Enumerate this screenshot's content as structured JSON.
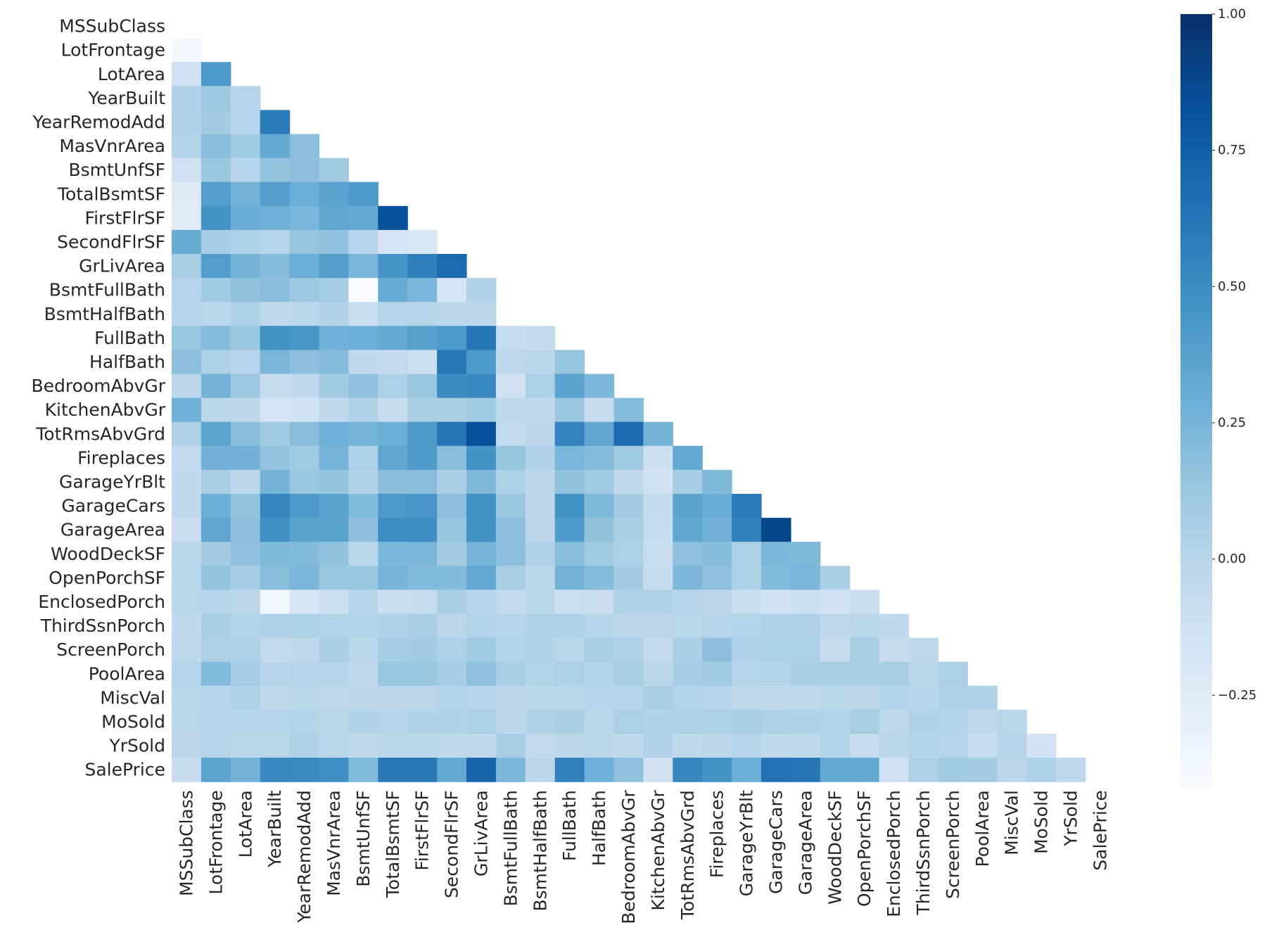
{
  "chart_data": {
    "type": "heatmap",
    "title": "",
    "xlabel": "",
    "ylabel": "",
    "mask": "upper-triangle-including-diagonal",
    "colormap": "Blues",
    "color_range": [
      -0.42,
      1.0
    ],
    "variables": [
      "MSSubClass",
      "LotFrontage",
      "LotArea",
      "YearBuilt",
      "YearRemodAdd",
      "MasVnrArea",
      "BsmtUnfSF",
      "TotalBsmtSF",
      "FirstFlrSF",
      "SecondFlrSF",
      "GrLivArea",
      "BsmtFullBath",
      "BsmtHalfBath",
      "FullBath",
      "HalfBath",
      "BedroomAbvGr",
      "KitchenAbvGr",
      "TotRmsAbvGrd",
      "Fireplaces",
      "GarageYrBlt",
      "GarageCars",
      "GarageArea",
      "WoodDeckSF",
      "OpenPorchSF",
      "EnclosedPorch",
      "ThirdSsnPorch",
      "ScreenPorch",
      "PoolArea",
      "MiscVal",
      "MoSold",
      "YrSold",
      "SalePrice"
    ],
    "rows": [
      [],
      [
        -0.39
      ],
      [
        -0.14,
        0.43
      ],
      [
        0.03,
        0.12,
        0.01
      ],
      [
        0.04,
        0.09,
        0.01,
        0.59
      ],
      [
        0.02,
        0.19,
        0.1,
        0.32,
        0.18
      ],
      [
        -0.14,
        0.13,
        -0.0,
        0.15,
        0.18,
        0.11
      ],
      [
        -0.24,
        0.39,
        0.26,
        0.39,
        0.29,
        0.36,
        0.42
      ],
      [
        -0.25,
        0.46,
        0.3,
        0.28,
        0.24,
        0.34,
        0.32,
        0.82
      ],
      [
        0.31,
        0.08,
        0.05,
        0.01,
        0.14,
        0.17,
        -0.0,
        -0.17,
        -0.2
      ],
      [
        0.07,
        0.4,
        0.26,
        0.2,
        0.29,
        0.39,
        0.24,
        0.45,
        0.57,
        0.69
      ],
      [
        0.0,
        0.1,
        0.16,
        0.19,
        0.12,
        0.08,
        -0.42,
        0.31,
        0.24,
        -0.17,
        0.03
      ],
      [
        -0.0,
        -0.01,
        0.05,
        -0.04,
        -0.01,
        0.03,
        -0.1,
        -0.0,
        0.0,
        -0.02,
        -0.02
      ],
      [
        0.13,
        0.2,
        0.13,
        0.47,
        0.44,
        0.28,
        0.29,
        0.32,
        0.38,
        0.42,
        0.63,
        -0.06,
        -0.05
      ],
      [
        0.18,
        0.05,
        0.01,
        0.24,
        0.18,
        0.2,
        -0.04,
        -0.05,
        -0.12,
        0.61,
        0.42,
        -0.03,
        -0.01,
        0.14
      ],
      [
        -0.02,
        0.26,
        0.12,
        -0.07,
        -0.04,
        0.1,
        0.17,
        0.05,
        0.13,
        0.5,
        0.52,
        -0.15,
        0.05,
        0.36,
        0.23
      ],
      [
        0.28,
        -0.01,
        -0.02,
        -0.17,
        -0.15,
        -0.04,
        0.03,
        -0.07,
        0.07,
        0.06,
        0.1,
        -0.04,
        -0.04,
        0.13,
        -0.07,
        0.2
      ],
      [
        0.04,
        0.35,
        0.19,
        0.1,
        0.19,
        0.28,
        0.25,
        0.29,
        0.41,
        0.62,
        0.83,
        -0.05,
        -0.02,
        0.55,
        0.34,
        0.68,
        0.26
      ],
      [
        -0.05,
        0.27,
        0.27,
        0.15,
        0.11,
        0.25,
        0.05,
        0.34,
        0.41,
        0.19,
        0.46,
        0.14,
        0.03,
        0.24,
        0.2,
        0.11,
        -0.12,
        0.33
      ],
      [
        -0.04,
        0.07,
        -0.02,
        0.26,
        0.13,
        0.15,
        0.03,
        0.19,
        0.19,
        0.06,
        0.22,
        0.05,
        -0.02,
        0.16,
        0.11,
        -0.04,
        -0.14,
        0.08,
        0.22
      ],
      [
        -0.04,
        0.29,
        0.15,
        0.54,
        0.42,
        0.36,
        0.21,
        0.43,
        0.44,
        0.18,
        0.47,
        0.13,
        -0.02,
        0.47,
        0.22,
        0.09,
        -0.05,
        0.36,
        0.3,
        0.59
      ],
      [
        -0.1,
        0.34,
        0.18,
        0.48,
        0.37,
        0.37,
        0.18,
        0.49,
        0.49,
        0.14,
        0.47,
        0.18,
        -0.02,
        0.41,
        0.16,
        0.07,
        -0.06,
        0.34,
        0.27,
        0.56,
        0.88
      ],
      [
        -0.01,
        0.09,
        0.17,
        0.22,
        0.21,
        0.16,
        -0.01,
        0.23,
        0.24,
        0.09,
        0.25,
        0.18,
        0.04,
        0.19,
        0.11,
        0.05,
        -0.09,
        0.17,
        0.2,
        0.05,
        0.23,
        0.22
      ],
      [
        -0.01,
        0.15,
        0.08,
        0.19,
        0.23,
        0.13,
        0.13,
        0.25,
        0.21,
        0.21,
        0.33,
        0.07,
        -0.01,
        0.26,
        0.2,
        0.09,
        -0.07,
        0.23,
        0.17,
        0.05,
        0.21,
        0.24,
        0.06
      ],
      [
        -0.01,
        0.01,
        -0.02,
        -0.39,
        -0.19,
        -0.11,
        -0.0,
        -0.1,
        -0.07,
        0.06,
        0.01,
        -0.05,
        -0.01,
        -0.12,
        -0.1,
        0.04,
        0.04,
        0.0,
        -0.02,
        -0.09,
        -0.15,
        -0.12,
        -0.13,
        -0.09
      ],
      [
        -0.04,
        0.07,
        0.02,
        0.03,
        0.05,
        0.02,
        0.02,
        0.04,
        0.06,
        -0.02,
        0.02,
        -0.0,
        0.04,
        0.04,
        -0.0,
        -0.02,
        -0.02,
        -0.01,
        0.01,
        0.02,
        0.04,
        0.04,
        -0.03,
        -0.01,
        -0.04
      ],
      [
        -0.03,
        0.04,
        0.04,
        -0.05,
        -0.04,
        0.06,
        -0.01,
        0.08,
        0.09,
        0.04,
        0.1,
        0.02,
        0.03,
        -0.01,
        0.07,
        0.04,
        -0.05,
        0.06,
        0.18,
        0.04,
        0.05,
        0.05,
        -0.07,
        0.07,
        -0.08,
        -0.03
      ],
      [
        0.01,
        0.21,
        0.08,
        0.0,
        0.01,
        0.01,
        -0.04,
        0.13,
        0.13,
        0.08,
        0.17,
        0.07,
        0.02,
        0.05,
        0.02,
        0.07,
        -0.01,
        0.08,
        0.1,
        0.01,
        0.02,
        0.06,
        0.07,
        0.07,
        0.07,
        -0.01,
        0.05
      ],
      [
        -0.01,
        0.0,
        0.04,
        -0.03,
        -0.01,
        -0.03,
        -0.02,
        -0.02,
        -0.02,
        0.02,
        -0.0,
        -0.02,
        -0.01,
        -0.01,
        0.0,
        0.01,
        0.06,
        0.02,
        0.0,
        -0.03,
        -0.04,
        -0.03,
        -0.01,
        -0.02,
        0.02,
        0.0,
        0.03,
        0.03
      ],
      [
        -0.01,
        0.01,
        0.0,
        0.01,
        0.02,
        -0.01,
        0.03,
        0.01,
        0.03,
        0.03,
        0.05,
        -0.02,
        0.03,
        0.06,
        -0.01,
        0.05,
        0.03,
        0.04,
        0.05,
        0.06,
        0.04,
        0.03,
        0.02,
        0.07,
        -0.03,
        0.03,
        0.02,
        -0.03,
        -0.01
      ],
      [
        -0.02,
        0.01,
        -0.01,
        -0.01,
        0.04,
        -0.01,
        -0.04,
        -0.01,
        -0.01,
        -0.03,
        -0.04,
        0.07,
        -0.05,
        -0.02,
        -0.01,
        -0.04,
        0.03,
        -0.03,
        -0.02,
        -0.0,
        -0.04,
        -0.03,
        0.02,
        -0.06,
        -0.01,
        0.02,
        0.01,
        -0.06,
        0.0,
        -0.15
      ],
      [
        -0.08,
        0.35,
        0.26,
        0.52,
        0.51,
        0.48,
        0.21,
        0.61,
        0.61,
        0.32,
        0.71,
        0.23,
        -0.02,
        0.56,
        0.28,
        0.17,
        -0.14,
        0.53,
        0.47,
        0.29,
        0.64,
        0.62,
        0.32,
        0.32,
        -0.13,
        0.04,
        0.11,
        0.09,
        -0.02,
        0.05,
        -0.03
      ]
    ],
    "colorbar": {
      "ticks": [
        "1.00",
        "0.75",
        "0.50",
        "0.25",
        "0.00",
        "−0.25"
      ],
      "tick_values": [
        1.0,
        0.75,
        0.5,
        0.25,
        0.0,
        -0.25
      ]
    },
    "grid": false
  }
}
